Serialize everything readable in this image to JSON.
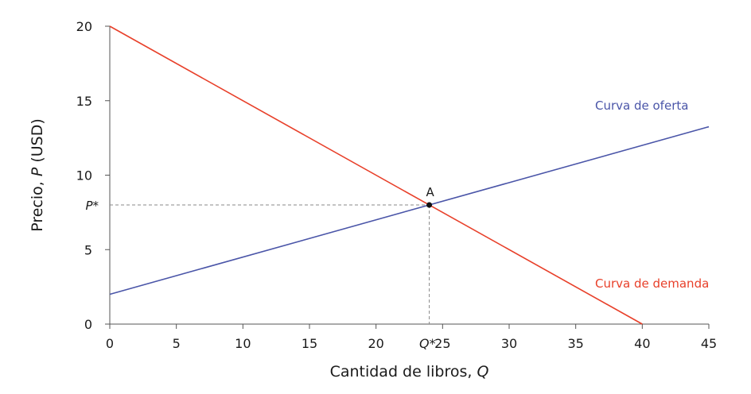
{
  "chart_data": {
    "type": "line",
    "title": "",
    "xlabel": "Cantidad de libros, ",
    "xlabel_var": "Q",
    "ylabel": "Precio, ",
    "ylabel_var": "P",
    "ylabel_unit": " (USD)",
    "xlim": [
      0,
      45
    ],
    "ylim": [
      0,
      20
    ],
    "xticks": [
      0,
      5,
      10,
      15,
      20,
      25,
      30,
      35,
      40,
      45
    ],
    "yticks": [
      0,
      5,
      10,
      15,
      20
    ],
    "grid": false,
    "series": [
      {
        "name": "Curva de demanda",
        "color": "#e8402a",
        "x": [
          0,
          40
        ],
        "y": [
          20,
          0
        ]
      },
      {
        "name": "Curva de oferta",
        "color": "#4a55a8",
        "x": [
          0,
          45
        ],
        "y": [
          2,
          13.25
        ]
      }
    ],
    "equilibrium": {
      "label": "A",
      "x": 24,
      "y": 8,
      "x_label": "Q",
      "x_label_suffix": "*",
      "y_label": "P",
      "y_label_suffix": "*"
    }
  }
}
